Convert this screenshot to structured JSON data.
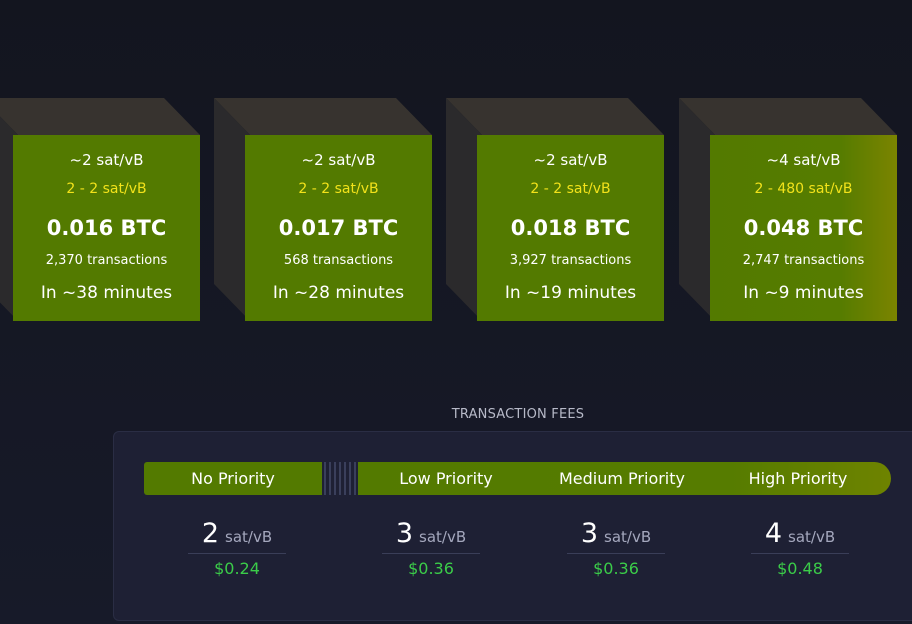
{
  "blocks": [
    {
      "median": "~2 sat/vB",
      "range": "2 - 2 sat/vB",
      "size": "0.016 BTC",
      "transactions": "2,370 transactions",
      "eta": "In ~38 minutes"
    },
    {
      "median": "~2 sat/vB",
      "range": "2 - 2 sat/vB",
      "size": "0.017 BTC",
      "transactions": "568 transactions",
      "eta": "In ~28 minutes"
    },
    {
      "median": "~2 sat/vB",
      "range": "2 - 2 sat/vB",
      "size": "0.018 BTC",
      "transactions": "3,927 transactions",
      "eta": "In ~19 minutes"
    },
    {
      "median": "~4 sat/vB",
      "range": "2 - 480 sat/vB",
      "size": "0.048 BTC",
      "transactions": "2,747 transactions",
      "eta": "In ~9 minutes"
    }
  ],
  "fees": {
    "title": "TRANSACTION FEES",
    "priorities": [
      {
        "label": "No Priority",
        "rate": "2",
        "unit": "sat/vB",
        "usd": "$0.24"
      },
      {
        "label": "Low Priority",
        "rate": "3",
        "unit": "sat/vB",
        "usd": "$0.36"
      },
      {
        "label": "Medium Priority",
        "rate": "3",
        "unit": "sat/vB",
        "usd": "$0.36"
      },
      {
        "label": "High Priority",
        "rate": "4",
        "unit": "sat/vB",
        "usd": "$0.48"
      }
    ]
  },
  "colors": {
    "block_face": "#537a00",
    "block_top": "#37332f",
    "block_side": "#2b2a2c",
    "fee_range": "#f2e21a",
    "usd_green": "#3bcc49",
    "background": "#161827",
    "card": "#1e2034"
  }
}
